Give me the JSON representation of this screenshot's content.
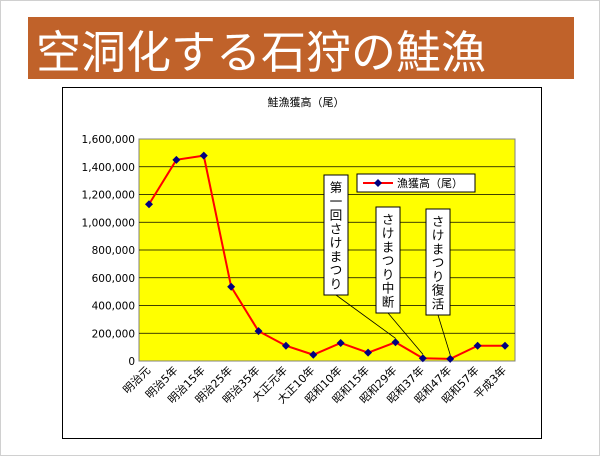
{
  "slide": {
    "title": "空洞化する石狩の鮭漁"
  },
  "colors": {
    "title_bar": "#c0622a",
    "plot_bg": "#ffff00",
    "line": "#ff0000",
    "marker": "#000080"
  },
  "chart_data": {
    "type": "line",
    "title": "鮭漁獲高（尾）",
    "xlabel": "",
    "ylabel": "",
    "categories": [
      "明治元",
      "明治5年",
      "明治15年",
      "明治25年",
      "明治35年",
      "大正元年",
      "大正10年",
      "昭和10年",
      "昭和15年",
      "昭和29年",
      "昭和37年",
      "昭和47年",
      "昭和57年",
      "平成3年"
    ],
    "series": [
      {
        "name": "漁獲高（尾）",
        "values": [
          1130000,
          1450000,
          1480000,
          535000,
          215000,
          110000,
          45000,
          130000,
          60000,
          135000,
          20000,
          15000,
          110000,
          110000
        ]
      }
    ],
    "ylim": [
      0,
      1600000
    ],
    "yticks": [
      "0",
      "200,000",
      "400,000",
      "600,000",
      "800,000",
      "1,000,000",
      "1,200,000",
      "1,400,000",
      "1,600,000"
    ],
    "grid": true,
    "legend": "right",
    "annotations": [
      {
        "text": "第一回さけまつり",
        "target_index": 9
      },
      {
        "text": "さけまつり中断",
        "target_index": 10
      },
      {
        "text": "さけまつり復活",
        "target_index": 11
      }
    ]
  }
}
